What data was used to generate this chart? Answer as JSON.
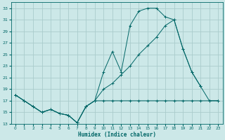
{
  "xlabel": "Humidex (Indice chaleur)",
  "bg_color": "#cce8e8",
  "grid_color": "#aacccc",
  "line_color": "#006666",
  "xlim": [
    -0.5,
    23.5
  ],
  "ylim": [
    13,
    34
  ],
  "yticks": [
    13,
    15,
    17,
    19,
    21,
    23,
    25,
    27,
    29,
    31,
    33
  ],
  "xticks": [
    0,
    1,
    2,
    3,
    4,
    5,
    6,
    7,
    8,
    9,
    10,
    11,
    12,
    13,
    14,
    15,
    16,
    17,
    18,
    19,
    20,
    21,
    22,
    23
  ],
  "line1_x": [
    0,
    1,
    2,
    3,
    4,
    5,
    6,
    7,
    8,
    9,
    10,
    11,
    12,
    13,
    14,
    15,
    16,
    17,
    18,
    19,
    20,
    21
  ],
  "line1_y": [
    18,
    17,
    16,
    15,
    15.5,
    14.8,
    14.5,
    13.2,
    16,
    17,
    22,
    25.5,
    22,
    30,
    32.5,
    33,
    33,
    31.5,
    31,
    26,
    22,
    19.5
  ],
  "line2_x": [
    0,
    1,
    2,
    3,
    4,
    5,
    6,
    7,
    8,
    9,
    10,
    11,
    12,
    13,
    14,
    15,
    16,
    17,
    18,
    19,
    20,
    21,
    22,
    23
  ],
  "line2_y": [
    18,
    17,
    16,
    15,
    15.5,
    14.8,
    14.5,
    13.2,
    16,
    17,
    19,
    20,
    21.5,
    23,
    25,
    26.5,
    28,
    30,
    31,
    26,
    22,
    19.5,
    17,
    17
  ],
  "line3_x": [
    0,
    1,
    2,
    3,
    4,
    5,
    6,
    7,
    8,
    9,
    10,
    11,
    12,
    13,
    14,
    15,
    16,
    17,
    18,
    19,
    20,
    21,
    22,
    23
  ],
  "line3_y": [
    18,
    17,
    16,
    15,
    15.5,
    14.8,
    14.5,
    13.2,
    16,
    17,
    17,
    17,
    17,
    17,
    17,
    17,
    17,
    17,
    17,
    17,
    17,
    17,
    17,
    17
  ]
}
